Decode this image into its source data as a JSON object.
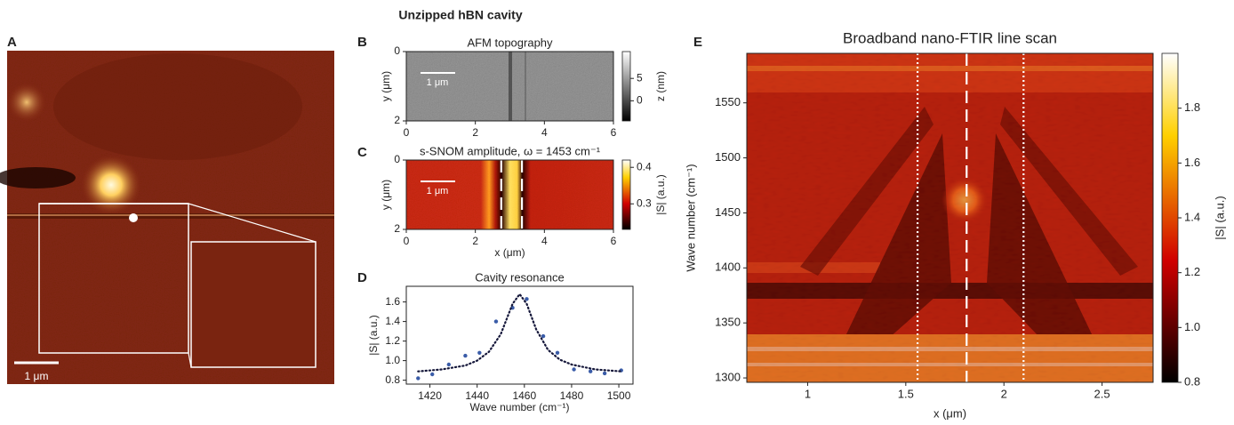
{
  "figure_title": "Unzipped hBN cavity",
  "chart_data": [
    {
      "type": "image",
      "panel_label": "A",
      "scale_bar": "1 μm"
    },
    {
      "type": "heatmap",
      "panel_label": "B",
      "title": "AFM topography",
      "ylabel": "y (μm)",
      "xlim": [
        0,
        6
      ],
      "ylim": [
        0,
        2
      ],
      "y_inverted": true,
      "xticks": [
        0,
        2,
        4,
        6
      ],
      "yticks": [
        0,
        2
      ],
      "scale_bar": "1 μm",
      "colorbar": {
        "label": "z (nm)",
        "zlim": [
          -4.5,
          11
        ],
        "ticks": [
          0,
          5
        ],
        "colormap": "gray"
      }
    },
    {
      "type": "heatmap",
      "panel_label": "C",
      "title": "s-SNOM amplitude, ω = 1453 cm⁻¹",
      "xlabel": "x (μm)",
      "ylabel": "y (μm)",
      "xlim": [
        0,
        6
      ],
      "ylim": [
        0,
        2
      ],
      "y_inverted": true,
      "xticks": [
        0,
        2,
        4,
        6
      ],
      "yticks": [
        0,
        2
      ],
      "scale_bar": "1 μm",
      "vlines": [
        {
          "value": 2.75,
          "style": "dashed"
        },
        {
          "value": 3.35,
          "style": "dashed"
        }
      ],
      "colorbar": {
        "label": "|S| (a.u.)",
        "zlim": [
          0.23,
          0.42
        ],
        "ticks": [
          0.3,
          0.4
        ],
        "colormap": "hot"
      }
    },
    {
      "type": "scatter",
      "panel_label": "D",
      "title": "Cavity resonance",
      "xlabel": "Wave number (cm⁻¹)",
      "ylabel": "|S| (a.u.)",
      "xlim": [
        1410,
        1506
      ],
      "ylim": [
        0.76,
        1.76
      ],
      "xticks": [
        1420,
        1440,
        1460,
        1480,
        1500
      ],
      "yticks": [
        0.8,
        {
          "value": 1,
          "label": "1.0"
        },
        1.2,
        1.4,
        1.6
      ],
      "series": [
        {
          "marker": "dot",
          "color": "#3a5ca8",
          "x": [
            1415,
            1421,
            1428,
            1435,
            1441,
            1448,
            1455,
            1461,
            1468,
            1474,
            1481,
            1488,
            1494,
            1501
          ],
          "values": [
            0.82,
            0.86,
            0.96,
            1.05,
            1.08,
            1.4,
            1.54,
            1.63,
            1.25,
            1.08,
            0.91,
            0.89,
            0.87,
            0.9
          ]
        },
        {
          "line": "dotted",
          "color": "#15173a",
          "x": [
            1415,
            1425,
            1435,
            1440,
            1445,
            1450,
            1455,
            1458,
            1461,
            1465,
            1470,
            1475,
            1480,
            1490,
            1501
          ],
          "values": [
            0.89,
            0.91,
            0.95,
            1.0,
            1.09,
            1.27,
            1.58,
            1.68,
            1.58,
            1.32,
            1.11,
            1.01,
            0.96,
            0.91,
            0.89
          ]
        }
      ]
    },
    {
      "type": "heatmap",
      "panel_label": "E",
      "title": "Broadband nano-FTIR line scan",
      "xlabel": "x (μm)",
      "ylabel": "Wave number (cm⁻¹)",
      "xlim": [
        0.69,
        2.76
      ],
      "ylim": [
        1296,
        1595
      ],
      "xticks": [
        1,
        1.5,
        2,
        2.5
      ],
      "yticks": [
        1300,
        1350,
        1400,
        1450,
        1500,
        1550
      ],
      "vlines": [
        {
          "value": 1.56,
          "style": "dotted"
        },
        {
          "value": 1.81,
          "style": "dashed"
        },
        {
          "value": 2.1,
          "style": "dotted"
        }
      ],
      "colorbar": {
        "label": "|S| (a.u.)",
        "zlim": [
          0.8,
          2.0
        ],
        "ticks": [
          0.8,
          {
            "value": 1,
            "label": "1.0"
          },
          1.2,
          1.4,
          1.6,
          1.8
        ],
        "colormap": "hot"
      }
    }
  ]
}
